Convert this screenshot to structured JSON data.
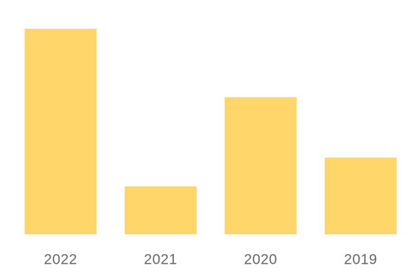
{
  "chart_data": {
    "type": "bar",
    "categories": [
      "2022",
      "2021",
      "2020",
      "2019"
    ],
    "values": [
      100,
      23.3,
      66.7,
      37.3
    ],
    "color": "#fed66a",
    "ylim": [
      0,
      100
    ]
  }
}
